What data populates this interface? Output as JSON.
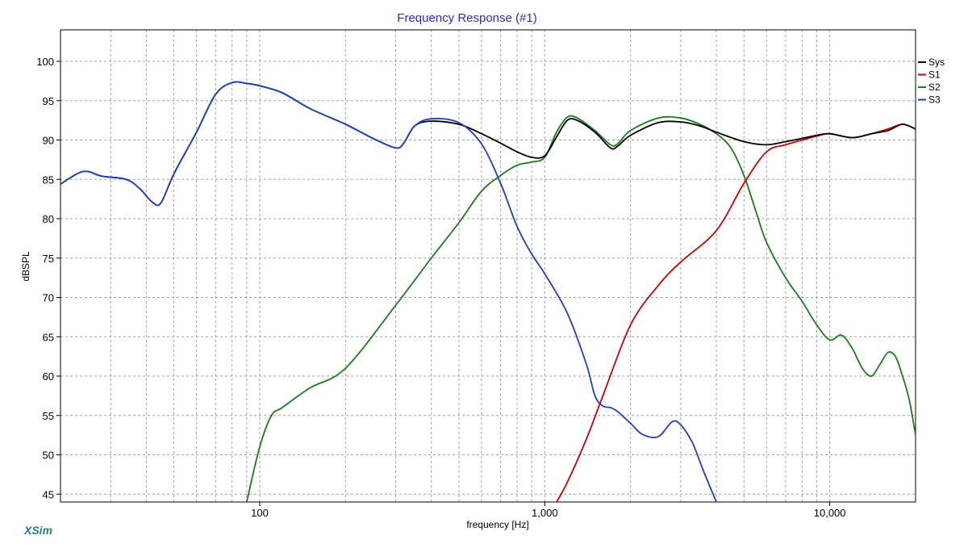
{
  "chart_data": {
    "type": "line",
    "title": "Frequency Response (#1)",
    "xlabel": "frequency [Hz]",
    "ylabel": "dBSPL",
    "x_scale": "log",
    "xlim": [
      20,
      20000
    ],
    "ylim": [
      44,
      104
    ],
    "grid": true,
    "legend_position": "right",
    "x_tick_labels": [
      {
        "value": 100,
        "label": "100"
      },
      {
        "value": 1000,
        "label": "1,000"
      },
      {
        "value": 10000,
        "label": "10,000"
      }
    ],
    "y_ticks": [
      45,
      50,
      55,
      60,
      65,
      70,
      75,
      80,
      85,
      90,
      95,
      100
    ],
    "series": [
      {
        "name": "Sys",
        "color": "#000000",
        "x": [
          20,
          24,
          28,
          34,
          38,
          42,
          45,
          50,
          60,
          70,
          80,
          90,
          100,
          120,
          150,
          200,
          250,
          300,
          320,
          350,
          400,
          500,
          600,
          700,
          800,
          900,
          1000,
          1100,
          1200,
          1300,
          1500,
          1700,
          1800,
          2000,
          2500,
          3000,
          3500,
          4000,
          5000,
          6000,
          7000,
          8000,
          9000,
          10000,
          12000,
          14000,
          16000,
          18000,
          20000
        ],
        "y": [
          84.4,
          86.0,
          85.4,
          85.0,
          83.8,
          82.1,
          82.0,
          85.7,
          91.0,
          95.8,
          97.3,
          97.2,
          96.9,
          96.0,
          94.0,
          92.0,
          90.2,
          89.0,
          89.6,
          91.8,
          92.4,
          92.0,
          90.8,
          89.6,
          88.5,
          87.8,
          88.0,
          90.4,
          92.5,
          92.5,
          91.0,
          89.0,
          89.2,
          90.6,
          92.2,
          92.3,
          91.8,
          91.0,
          89.8,
          89.4,
          89.8,
          90.2,
          90.6,
          90.8,
          90.3,
          90.8,
          91.2,
          92.0,
          91.4
        ]
      },
      {
        "name": "S1",
        "color": "#cc0000",
        "x": [
          1100,
          1200,
          1400,
          1600,
          2000,
          2500,
          3000,
          4000,
          5000,
          6000,
          7000,
          8000,
          9000,
          10000,
          12000,
          14000,
          16000,
          18000,
          20000
        ],
        "y": [
          44,
          46.5,
          52.0,
          57.5,
          66.5,
          71.5,
          74.5,
          78.5,
          84.5,
          88.5,
          89.4,
          90.0,
          90.5,
          90.8,
          90.3,
          90.8,
          91.4,
          92.0,
          91.4
        ]
      },
      {
        "name": "S2",
        "color": "#1e7a1e",
        "x": [
          90,
          100,
          110,
          120,
          150,
          200,
          300,
          400,
          500,
          600,
          700,
          800,
          900,
          1000,
          1100,
          1200,
          1300,
          1500,
          1700,
          1800,
          2000,
          2500,
          3000,
          3500,
          4000,
          4500,
          5000,
          5500,
          6000,
          7000,
          8000,
          9000,
          10000,
          11000,
          12000,
          13000,
          14000,
          15000,
          16000,
          17000,
          18000,
          19000,
          20000
        ],
        "y": [
          44.0,
          51.0,
          55.0,
          56.0,
          58.5,
          61.0,
          69.0,
          75.0,
          79.5,
          83.5,
          85.5,
          86.8,
          87.2,
          87.8,
          91.0,
          92.9,
          92.8,
          91.2,
          89.4,
          89.5,
          91.2,
          92.8,
          92.8,
          92.0,
          90.8,
          89.0,
          85.5,
          81.0,
          77.0,
          72.5,
          69.5,
          66.5,
          64.6,
          65.2,
          63.5,
          61.0,
          60.0,
          61.5,
          63.0,
          62.5,
          60.0,
          57.0,
          52.5
        ]
      },
      {
        "name": "S3",
        "color": "#1f3fbf",
        "x": [
          20,
          24,
          28,
          34,
          38,
          42,
          45,
          50,
          60,
          70,
          80,
          90,
          100,
          120,
          150,
          200,
          250,
          300,
          320,
          350,
          400,
          500,
          600,
          700,
          800,
          900,
          1000,
          1200,
          1400,
          1500,
          1600,
          1700,
          1800,
          2000,
          2200,
          2500,
          2800,
          3000,
          3300,
          3600,
          4000
        ],
        "y": [
          84.4,
          86.0,
          85.4,
          85.0,
          83.8,
          82.1,
          82.0,
          85.7,
          91.0,
          95.8,
          97.3,
          97.2,
          96.9,
          96.0,
          94.0,
          92.0,
          90.2,
          89.0,
          89.6,
          91.8,
          92.7,
          92.2,
          89.5,
          84.5,
          79.0,
          75.5,
          73.0,
          68.0,
          61.5,
          57.5,
          56.2,
          56.0,
          55.5,
          54.0,
          52.6,
          52.3,
          54.2,
          53.8,
          51.5,
          48.0,
          44.0
        ]
      }
    ]
  },
  "logo_text": "XSim"
}
